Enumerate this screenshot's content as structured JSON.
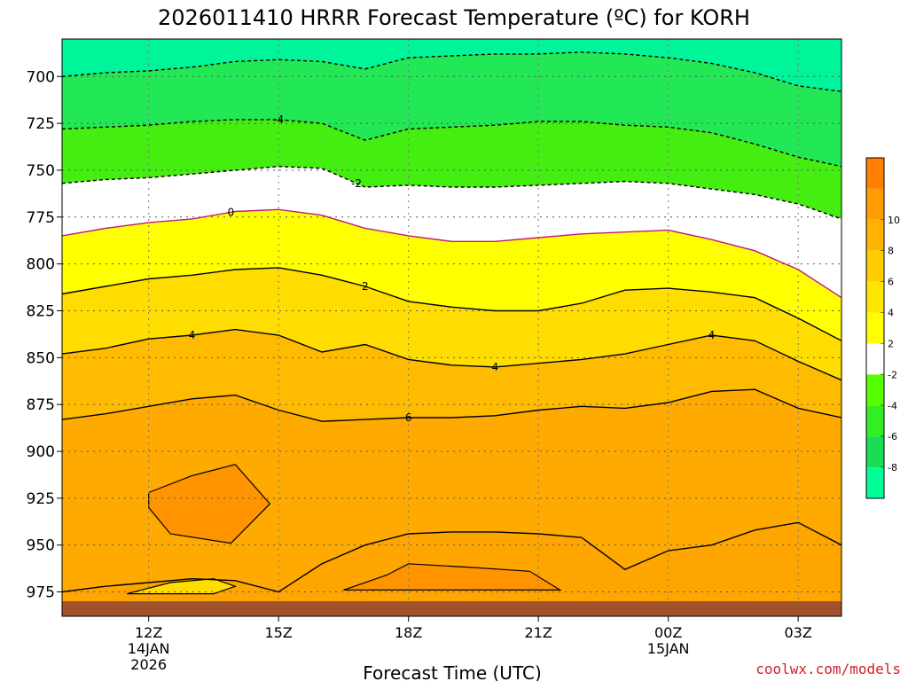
{
  "chart_data": {
    "type": "heatmap",
    "title": "2026011410 HRRR Forecast Temperature (ºC) for KORH",
    "xlabel": "Forecast Time (UTC)",
    "ylabel": "",
    "credit": "coolwx.com/models",
    "x_hours": [
      10,
      11,
      12,
      13,
      14,
      15,
      16,
      17,
      18,
      19,
      20,
      21,
      22,
      23,
      24,
      25,
      26,
      27,
      28
    ],
    "xlim": [
      10,
      28
    ],
    "ylim": [
      680,
      988
    ],
    "ground_pressure": 975,
    "x_ticks": [
      {
        "hour": 12,
        "label": "12Z",
        "sub1": "14JAN",
        "sub2": "2026"
      },
      {
        "hour": 15,
        "label": "15Z",
        "sub1": "",
        "sub2": ""
      },
      {
        "hour": 18,
        "label": "18Z",
        "sub1": "",
        "sub2": ""
      },
      {
        "hour": 21,
        "label": "21Z",
        "sub1": "",
        "sub2": ""
      },
      {
        "hour": 24,
        "label": "00Z",
        "sub1": "15JAN",
        "sub2": ""
      },
      {
        "hour": 27,
        "label": "03Z",
        "sub1": "",
        "sub2": ""
      }
    ],
    "y_ticks": [
      700,
      725,
      750,
      775,
      800,
      825,
      850,
      875,
      900,
      925,
      950,
      975
    ],
    "isotherms": [
      {
        "value": -6,
        "label": "",
        "pressure": [
          700,
          698,
          697,
          695,
          692,
          691,
          692,
          696,
          690,
          689,
          688,
          688,
          687,
          688,
          690,
          693,
          698,
          705,
          708
        ]
      },
      {
        "value": -4,
        "label": "-4",
        "pressure": [
          728,
          727,
          726,
          724,
          723,
          723,
          725,
          734,
          728,
          727,
          726,
          724,
          724,
          726,
          727,
          730,
          736,
          743,
          748
        ]
      },
      {
        "value": -2,
        "label": "-2",
        "pressure": [
          757,
          755,
          754,
          752,
          750,
          748,
          749,
          759,
          758,
          759,
          759,
          758,
          757,
          756,
          757,
          760,
          763,
          768,
          776
        ]
      },
      {
        "value": 0,
        "label": "0",
        "pressure": [
          785,
          781,
          778,
          776,
          772,
          771,
          774,
          781,
          785,
          788,
          788,
          786,
          784,
          783,
          782,
          787,
          793,
          803,
          818
        ]
      },
      {
        "value": 2,
        "label": "2",
        "pressure": [
          816,
          812,
          808,
          806,
          803,
          802,
          806,
          812,
          820,
          823,
          825,
          825,
          821,
          814,
          813,
          815,
          818,
          829,
          841
        ]
      },
      {
        "value": 4,
        "label": "4",
        "pressure": [
          848,
          845,
          840,
          838,
          835,
          838,
          847,
          843,
          851,
          854,
          855,
          853,
          851,
          848,
          843,
          838,
          841,
          852,
          862
        ]
      },
      {
        "value": 6,
        "label": "6",
        "pressure": [
          883,
          880,
          876,
          872,
          870,
          878,
          884,
          883,
          882,
          882,
          881,
          878,
          876,
          877,
          874,
          868,
          867,
          877,
          882
        ]
      },
      {
        "value": 8,
        "label": "",
        "pressure": [
          975,
          972,
          970,
          968,
          969,
          975,
          960,
          950,
          944,
          943,
          943,
          944,
          946,
          963,
          953,
          950,
          942,
          938,
          950
        ]
      }
    ],
    "closed_contours": [
      {
        "value": 10,
        "points": [
          [
            12.0,
            922
          ],
          [
            13.0,
            913
          ],
          [
            14.0,
            907
          ],
          [
            14.8,
            928
          ],
          [
            13.9,
            949
          ],
          [
            12.5,
            944
          ],
          [
            12.0,
            930
          ]
        ]
      },
      {
        "value": 10,
        "points": [
          [
            16.5,
            974
          ],
          [
            17.5,
            966
          ],
          [
            18.0,
            960
          ],
          [
            19.5,
            962
          ],
          [
            20.8,
            964
          ],
          [
            21.5,
            974
          ]
        ]
      },
      {
        "value": 6,
        "points": [
          [
            13.5,
            968
          ],
          [
            14.0,
            972
          ],
          [
            13.5,
            976
          ],
          [
            12.5,
            976
          ],
          [
            11.5,
            976
          ],
          [
            12.5,
            970
          ]
        ]
      }
    ],
    "colorbar": [
      {
        "label": "",
        "color": "#ff8000"
      },
      {
        "label": "10",
        "color": "#ff9c00"
      },
      {
        "label": "8",
        "color": "#ffb200"
      },
      {
        "label": "6",
        "color": "#ffcc00"
      },
      {
        "label": "4",
        "color": "#ffe600"
      },
      {
        "label": "2",
        "color": "#ffff00"
      },
      {
        "label": "-2",
        "color": "#ffffff"
      },
      {
        "label": "-4",
        "color": "#55ff00"
      },
      {
        "label": "-6",
        "color": "#33ee22"
      },
      {
        "label": "-8",
        "color": "#18dd55"
      },
      {
        "label": "",
        "color": "#00ff99"
      }
    ],
    "fill_bands": [
      {
        "from": -6,
        "to": -4,
        "color": "#22e855"
      },
      {
        "from": -4,
        "to": -2,
        "color": "#44ee11"
      },
      {
        "from": -2,
        "to": 0,
        "color": "#ffffff"
      },
      {
        "from": 0,
        "to": 2,
        "color": "#ffffff"
      },
      {
        "from": 2,
        "to": 4,
        "color": "#ffff00"
      },
      {
        "from": 4,
        "to": 6,
        "color": "#ffdd00"
      },
      {
        "from": 6,
        "to": 8,
        "color": "#ffbb00"
      },
      {
        "from": 8,
        "to": 10,
        "color": "#ffa500"
      },
      {
        "from": 10,
        "to": 12,
        "color": "#ff8c00"
      }
    ],
    "top_color": "#00f59a",
    "ground_color": "#a0522d"
  }
}
